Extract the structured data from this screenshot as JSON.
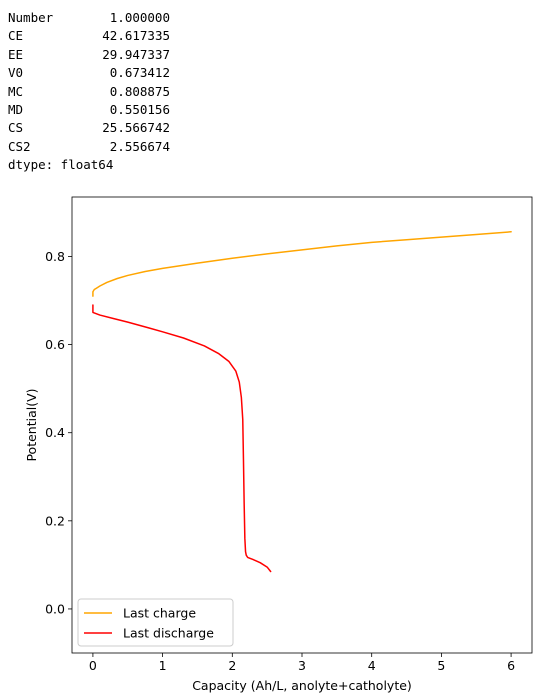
{
  "output": {
    "series": [
      {
        "key": "Number",
        "value": "1.000000"
      },
      {
        "key": "CE",
        "value": "42.617335"
      },
      {
        "key": "EE",
        "value": "29.947337"
      },
      {
        "key": "V0",
        "value": "0.673412"
      },
      {
        "key": "MC",
        "value": "0.808875"
      },
      {
        "key": "MD",
        "value": "0.550156"
      },
      {
        "key": "CS",
        "value": "25.566742"
      },
      {
        "key": "CS2",
        "value": "2.556674"
      }
    ],
    "dtype": "dtype: float64"
  },
  "chart_data": {
    "type": "line",
    "title": "",
    "xlabel": "Capacity (Ah/L, anolyte+catholyte)",
    "ylabel": "Potential(V)",
    "xlim": [
      -0.3,
      6.3
    ],
    "ylim": [
      -0.1,
      0.935
    ],
    "xticks": [
      "0",
      "1",
      "2",
      "3",
      "4",
      "5",
      "6"
    ],
    "yticks": [
      "0.0",
      "0.2",
      "0.4",
      "0.6",
      "0.8"
    ],
    "grid": false,
    "legend_position": "lower-left",
    "series": [
      {
        "name": "Last charge",
        "color": "#ffa500",
        "x": [
          0.0,
          0.0,
          0.02,
          0.05,
          0.1,
          0.2,
          0.35,
          0.5,
          0.75,
          1.0,
          1.5,
          2.0,
          2.5,
          3.0,
          3.5,
          4.0,
          4.5,
          5.0,
          5.5,
          6.0
        ],
        "y": [
          0.71,
          0.72,
          0.725,
          0.728,
          0.733,
          0.741,
          0.75,
          0.757,
          0.766,
          0.773,
          0.785,
          0.796,
          0.806,
          0.815,
          0.824,
          0.832,
          0.838,
          0.844,
          0.85,
          0.856
        ]
      },
      {
        "name": "Last discharge",
        "color": "#ff0000",
        "x": [
          0.0,
          0.0,
          0.1,
          0.3,
          0.5,
          0.8,
          1.0,
          1.3,
          1.6,
          1.8,
          1.95,
          2.05,
          2.1,
          2.13,
          2.15,
          2.16,
          2.17,
          2.18,
          2.19,
          2.2,
          2.22,
          2.3,
          2.4,
          2.5,
          2.55
        ],
        "y": [
          0.69,
          0.673,
          0.667,
          0.659,
          0.651,
          0.638,
          0.629,
          0.615,
          0.597,
          0.58,
          0.562,
          0.54,
          0.515,
          0.48,
          0.43,
          0.34,
          0.24,
          0.16,
          0.13,
          0.122,
          0.117,
          0.112,
          0.105,
          0.095,
          0.085
        ]
      }
    ]
  }
}
